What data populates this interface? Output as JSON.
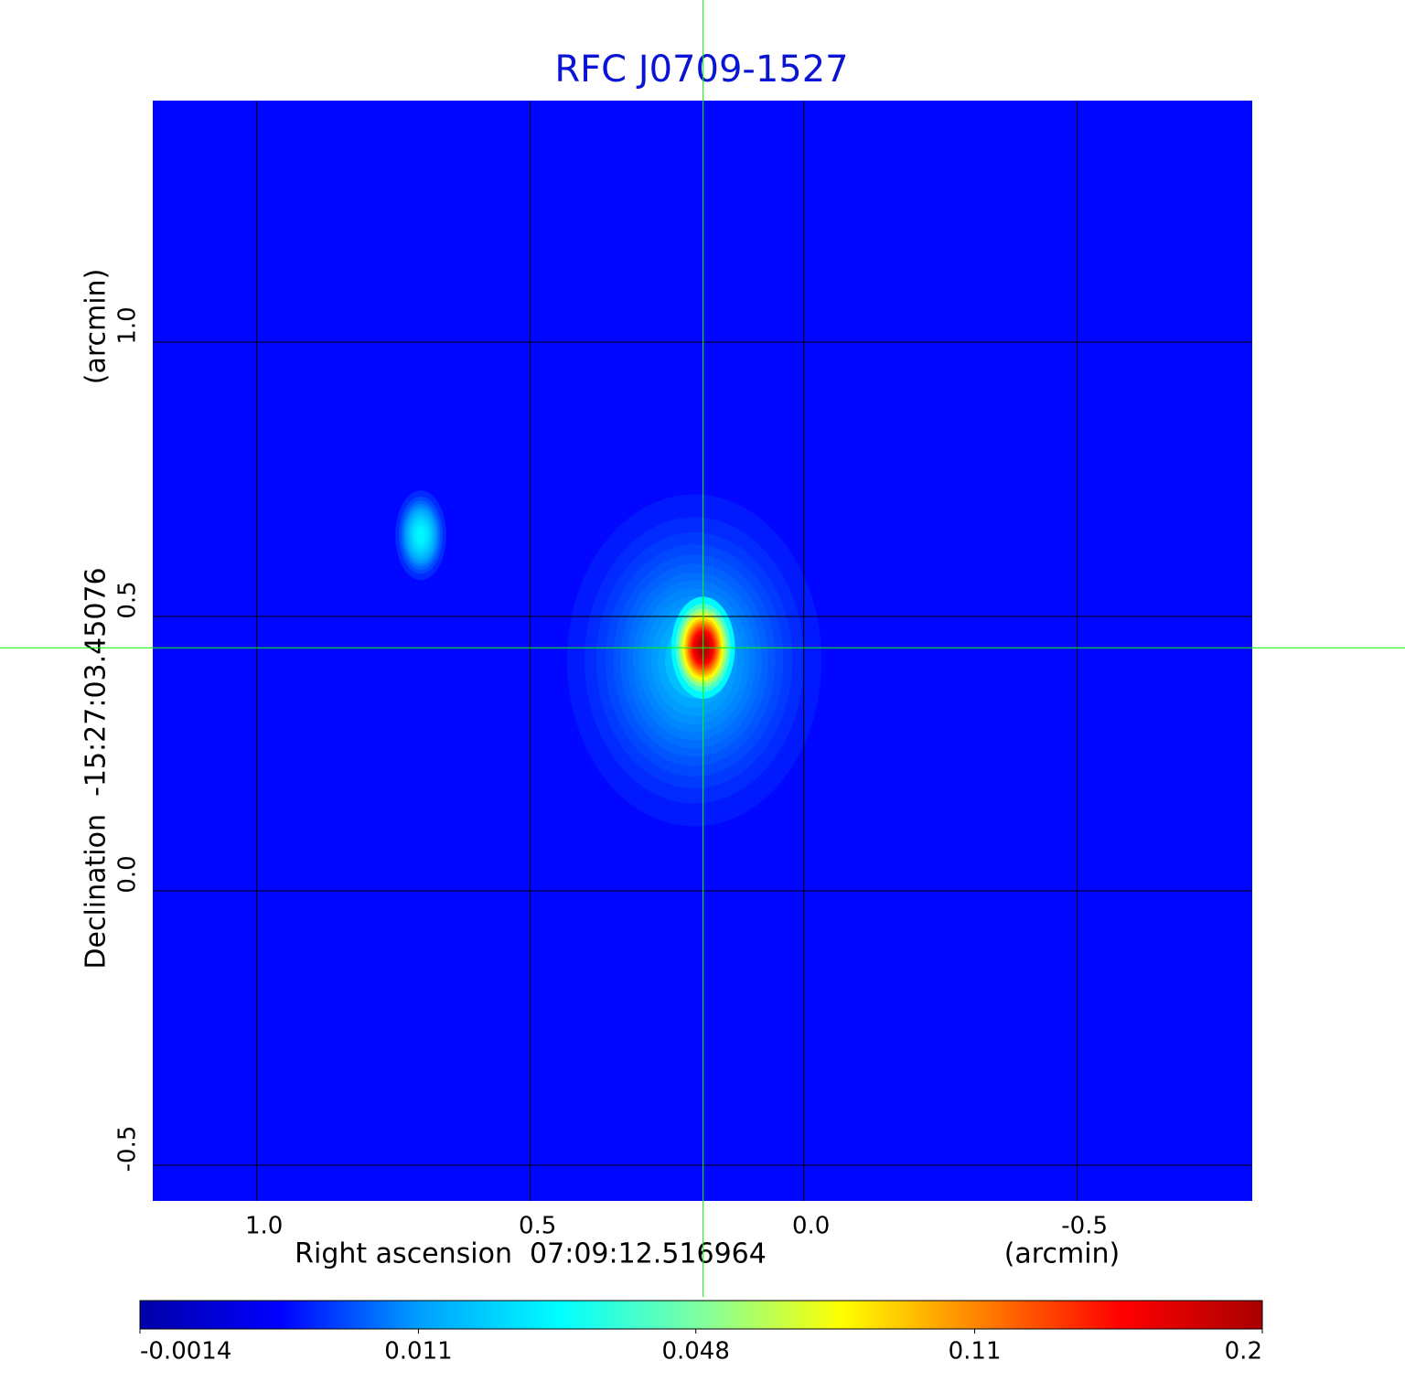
{
  "chart_data": {
    "type": "image",
    "title": "RFC J0709-1527",
    "xlabel": "Right ascension  07:09:12.516964",
    "xunit": "(arcmin)",
    "ylabel": "Declination  -15:27:03.45076",
    "yunit": "(arcmin)",
    "xlim": [
      1.19,
      -0.82
    ],
    "ylim": [
      -0.565,
      1.44
    ],
    "xticks": [
      {
        "value": 1,
        "label": "1.0"
      },
      0.5,
      {
        "value": 0,
        "label": "0.0"
      },
      -0.5
    ],
    "yticks": [
      -0.5,
      {
        "value": 0,
        "label": "0.0"
      },
      0.5,
      {
        "value": 1,
        "label": "1.0"
      }
    ],
    "grid": true,
    "background": 0.002,
    "sources": [
      {
        "x": 0.2,
        "y": 0.42,
        "peak": 0.012,
        "sigma_x": 0.1,
        "sigma_y": 0.13
      },
      {
        "x": 0.184,
        "y": 0.443,
        "peak": 0.19,
        "sigma_x": 0.025,
        "sigma_y": 0.04
      },
      {
        "x": 0.7,
        "y": 0.648,
        "peak": 0.025,
        "sigma_x": 0.02,
        "sigma_y": 0.035
      }
    ],
    "crosshair": {
      "x": 0.184,
      "y": 0.443,
      "color": "#00ff00"
    },
    "colorbar": {
      "scale": "sqrt",
      "clim": [
        -0.0014,
        0.2
      ],
      "ticks": [
        -0.0014,
        0.011,
        0.048,
        0.11,
        0.2
      ],
      "colormap": [
        "#0000a8",
        "#0000ff",
        "#00a0ff",
        "#00ffff",
        "#80ffa0",
        "#ffff00",
        "#ff8000",
        "#ff0000",
        "#a80000"
      ]
    }
  }
}
